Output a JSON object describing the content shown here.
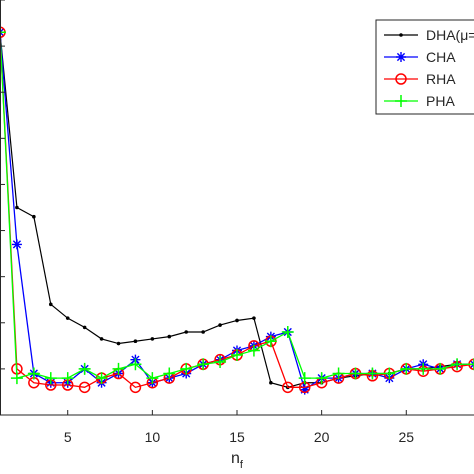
{
  "chart_data": {
    "type": "line",
    "xlabel": "n",
    "xlabel_subscript": "f",
    "ylabel": "",
    "title": "",
    "xlim": [
      1,
      29
    ],
    "ylim": [
      0.1,
      1.0
    ],
    "xticks": [
      5,
      10,
      15,
      20,
      25
    ],
    "grid": false,
    "legend_position": "top-right",
    "x": [
      1,
      2,
      3,
      4,
      5,
      6,
      7,
      8,
      9,
      10,
      11,
      12,
      13,
      14,
      15,
      16,
      17,
      18,
      19,
      20,
      21,
      22,
      23,
      24,
      25,
      26,
      27,
      28,
      29
    ],
    "series": [
      {
        "name": "DHA(μ=",
        "color": "#000000",
        "marker": "dot",
        "values": [
          0.93,
          0.55,
          0.53,
          0.34,
          0.31,
          0.29,
          0.265,
          0.255,
          0.26,
          0.265,
          0.27,
          0.28,
          0.28,
          0.295,
          0.305,
          0.31,
          0.17,
          0.16,
          0.17,
          0.17,
          0.18,
          0.185,
          0.19,
          0.19,
          0.2,
          0.2,
          0.205,
          0.21,
          0.21
        ]
      },
      {
        "name": "CHA",
        "color": "#0000ff",
        "marker": "asterisk",
        "values": [
          0.93,
          0.47,
          0.19,
          0.17,
          0.17,
          0.2,
          0.17,
          0.19,
          0.22,
          0.17,
          0.18,
          0.19,
          0.21,
          0.22,
          0.24,
          0.25,
          0.27,
          0.28,
          0.155,
          0.18,
          0.18,
          0.19,
          0.19,
          0.18,
          0.2,
          0.21,
          0.2,
          0.21,
          0.21
        ]
      },
      {
        "name": "RHA",
        "color": "#ff0000",
        "marker": "circle",
        "values": [
          0.93,
          0.2,
          0.17,
          0.165,
          0.165,
          0.16,
          0.18,
          0.19,
          0.16,
          0.17,
          0.18,
          0.2,
          0.21,
          0.22,
          0.23,
          0.25,
          0.26,
          0.16,
          0.16,
          0.17,
          0.18,
          0.19,
          0.185,
          0.19,
          0.2,
          0.195,
          0.2,
          0.205,
          0.21
        ]
      },
      {
        "name": "PHA",
        "color": "#00ff00",
        "marker": "plus",
        "values": [
          0.93,
          0.18,
          0.19,
          0.18,
          0.18,
          0.2,
          0.18,
          0.2,
          0.21,
          0.18,
          0.19,
          0.2,
          0.21,
          0.215,
          0.23,
          0.24,
          0.26,
          0.28,
          0.18,
          0.18,
          0.19,
          0.19,
          0.19,
          0.19,
          0.2,
          0.2,
          0.2,
          0.21,
          0.21
        ]
      }
    ]
  }
}
